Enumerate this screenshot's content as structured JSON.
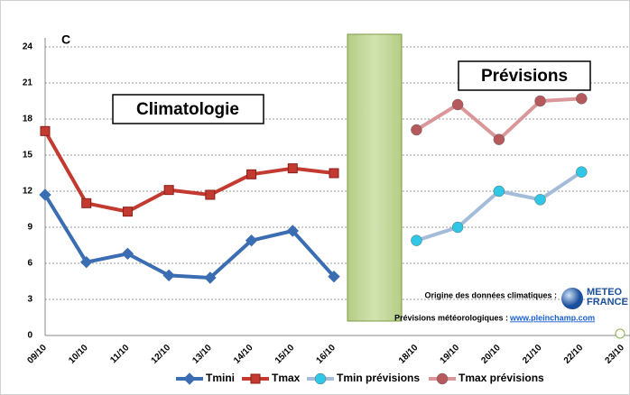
{
  "chart_data": {
    "type": "line",
    "y_unit": "C",
    "categories": [
      "09/10",
      "10/10",
      "11/10",
      "12/10",
      "13/10",
      "14/10",
      "15/10",
      "16/10",
      null,
      "18/10",
      "19/10",
      "20/10",
      "21/10",
      "22/10",
      "23/10"
    ],
    "ylim": [
      0,
      24
    ],
    "yticks": [
      0,
      3,
      6,
      9,
      12,
      15,
      18,
      21,
      24
    ],
    "grid": true,
    "series": [
      {
        "name": "Tmini",
        "color": "#3b6db3",
        "marker": "diamond",
        "marker_color": "#3b6db3",
        "values": [
          11.7,
          6.1,
          6.8,
          5.0,
          4.8,
          7.9,
          8.7,
          4.9,
          null,
          null,
          null,
          null,
          null,
          null,
          null
        ]
      },
      {
        "name": "Tmax",
        "color": "#c23a30",
        "marker": "square",
        "marker_color": "#c23a30",
        "values": [
          17.0,
          11.0,
          10.3,
          12.1,
          11.7,
          13.4,
          13.9,
          13.5,
          null,
          null,
          null,
          null,
          null,
          null,
          null
        ]
      },
      {
        "name": "Tmin prévisions",
        "color": "#a3bcd9",
        "marker": "circle",
        "marker_color": "#2ec8e6",
        "values": [
          null,
          null,
          null,
          null,
          null,
          null,
          null,
          null,
          null,
          7.9,
          9.0,
          12.0,
          11.3,
          13.6,
          null
        ]
      },
      {
        "name": "Tmax prévisions",
        "color": "#d9979a",
        "marker": "circle",
        "marker_color": "#b7585c",
        "values": [
          null,
          null,
          null,
          null,
          null,
          null,
          null,
          null,
          null,
          17.1,
          19.2,
          16.3,
          19.5,
          19.7,
          null
        ]
      }
    ],
    "annotations": {
      "climatologie": "Climatologie",
      "previsions": "Prévisions",
      "origine": "Origine des données climatiques :",
      "meteo1": "METEO",
      "meteo2": "FRANCE",
      "previsions_meteo": "Prévisions météorologiques :",
      "url": "www.pleinchamp.com"
    }
  }
}
